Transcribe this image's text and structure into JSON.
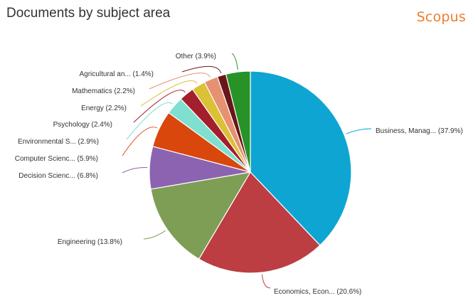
{
  "header": {
    "title": "Documents by subject area",
    "brand": "Scopus"
  },
  "chart_data": {
    "type": "pie",
    "title": "Documents by subject area",
    "slices": [
      {
        "label": "Business, Manag... (37.9%)",
        "value": 37.9,
        "color": "#0ea5d3"
      },
      {
        "label": "Economics, Econ... (20.6%)",
        "value": 20.6,
        "color": "#bc3d42"
      },
      {
        "label": "Engineering (13.8%)",
        "value": 13.8,
        "color": "#7d9e54"
      },
      {
        "label": "Decision Scienc... (6.8%)",
        "value": 6.8,
        "color": "#8c63b0"
      },
      {
        "label": "Computer Scienc... (5.9%)",
        "value": 5.9,
        "color": "#d9470d"
      },
      {
        "label": "Environmental S... (2.9%)",
        "value": 2.9,
        "color": "#7fe0cf"
      },
      {
        "label": "Psychology (2.4%)",
        "value": 2.4,
        "color": "#a31f2c"
      },
      {
        "label": "Energy (2.2%)",
        "value": 2.2,
        "color": "#dcc035"
      },
      {
        "label": "Mathematics (2.2%)",
        "value": 2.2,
        "color": "#e69272"
      },
      {
        "label": "Agricultural an... (1.4%)",
        "value": 1.4,
        "color": "#6a1519"
      },
      {
        "label": "Other (3.9%)",
        "value": 3.9,
        "color": "#279225"
      }
    ]
  }
}
